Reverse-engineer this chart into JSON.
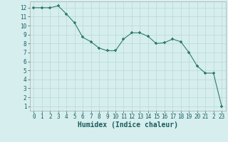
{
  "xlabel": "Humidex (Indice chaleur)",
  "x": [
    0,
    1,
    2,
    3,
    4,
    5,
    6,
    7,
    8,
    9,
    10,
    11,
    12,
    13,
    14,
    15,
    16,
    17,
    18,
    19,
    20,
    21,
    22,
    23
  ],
  "y": [
    12.0,
    12.0,
    12.0,
    12.2,
    11.3,
    10.3,
    8.7,
    8.2,
    7.5,
    7.2,
    7.2,
    8.5,
    9.2,
    9.2,
    8.8,
    8.0,
    8.1,
    8.5,
    8.2,
    7.0,
    5.5,
    4.7,
    4.7,
    1.0
  ],
  "line_color": "#2e7d6e",
  "marker": "P",
  "marker_size": 2.5,
  "bg_color": "#d6eeee",
  "grid_color": "#b8d8d8",
  "xlim": [
    -0.5,
    23.5
  ],
  "ylim": [
    0.5,
    12.7
  ],
  "ytick_values": [
    1,
    2,
    3,
    4,
    5,
    6,
    7,
    8,
    9,
    10,
    11,
    12
  ],
  "tick_fontsize": 5.5,
  "label_fontsize": 7.0
}
